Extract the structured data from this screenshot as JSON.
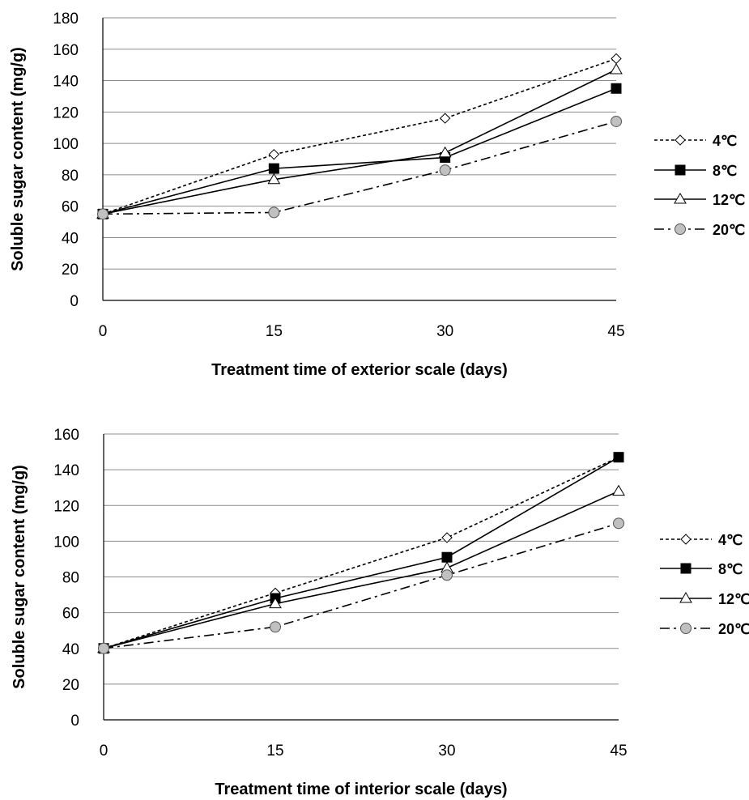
{
  "chart_data": [
    {
      "type": "line",
      "title": "",
      "xlabel": "Treatment time of exterior scale (days)",
      "ylabel": "Soluble sugar content (mg/g)",
      "x": [
        0,
        15,
        30,
        45
      ],
      "xticks": [
        "0",
        "15",
        "30",
        "45"
      ],
      "ylim": [
        0,
        180
      ],
      "yticks": [
        "0",
        "20",
        "40",
        "60",
        "80",
        "100",
        "120",
        "140",
        "160",
        "180"
      ],
      "ystep": 20,
      "grid": true,
      "legend_position": "right",
      "series": [
        {
          "name": "4℃",
          "values": [
            55,
            93,
            116,
            154
          ],
          "marker": "diamond",
          "line": "dashed"
        },
        {
          "name": "8℃",
          "values": [
            55,
            84,
            91,
            135
          ],
          "marker": "square",
          "line": "solid"
        },
        {
          "name": "12℃",
          "values": [
            55,
            77,
            94,
            147
          ],
          "marker": "triangle",
          "line": "solid"
        },
        {
          "name": "20℃",
          "values": [
            55,
            56,
            83,
            114
          ],
          "marker": "circle",
          "line": "dashdot"
        }
      ]
    },
    {
      "type": "line",
      "title": "",
      "xlabel": "Treatment time of interior scale (days)",
      "ylabel": "Soluble sugar content (mg/g)",
      "x": [
        0,
        15,
        30,
        45
      ],
      "xticks": [
        "0",
        "15",
        "30",
        "45"
      ],
      "ylim": [
        0,
        160
      ],
      "yticks": [
        "0",
        "20",
        "40",
        "60",
        "80",
        "100",
        "120",
        "140",
        "160"
      ],
      "ystep": 20,
      "grid": true,
      "legend_position": "right",
      "series": [
        {
          "name": "4℃",
          "values": [
            40,
            71,
            102,
            147
          ],
          "marker": "diamond",
          "line": "dashed"
        },
        {
          "name": "8℃",
          "values": [
            40,
            68,
            91,
            147
          ],
          "marker": "square",
          "line": "solid"
        },
        {
          "name": "12℃",
          "values": [
            40,
            65,
            85,
            128
          ],
          "marker": "triangle",
          "line": "solid"
        },
        {
          "name": "20℃",
          "values": [
            40,
            52,
            81,
            110
          ],
          "marker": "circle",
          "line": "dashdot"
        }
      ]
    }
  ]
}
